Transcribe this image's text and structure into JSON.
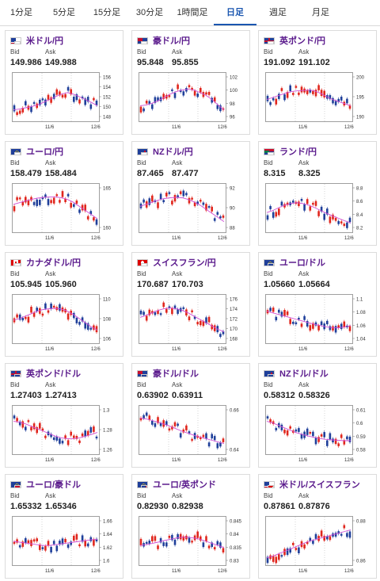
{
  "tabs": [
    {
      "label": "1分足",
      "active": false
    },
    {
      "label": "5分足",
      "active": false
    },
    {
      "label": "15分足",
      "active": false
    },
    {
      "label": "30分足",
      "active": false
    },
    {
      "label": "1時間足",
      "active": false
    },
    {
      "label": "日足",
      "active": true
    },
    {
      "label": "週足",
      "active": false
    },
    {
      "label": "月足",
      "active": false
    }
  ],
  "labels": {
    "bid": "Bid",
    "ask": "Ask"
  },
  "colors": {
    "up": "#e0261d",
    "down": "#1f3f9a",
    "ma": "#d14fd6",
    "pairText": "#5a1a8c",
    "activeTab": "#1a56b0"
  },
  "pairs": [
    {
      "name": "米ドル/円",
      "bid": "149.986",
      "ask": "149.988",
      "flags": [
        "us",
        "jp"
      ],
      "ticks": [
        "156",
        "154",
        "152",
        "150",
        "148"
      ],
      "x_labels": [
        "11/6",
        "12/6"
      ],
      "ma": [
        0.2,
        0.22,
        0.25,
        0.28,
        0.32,
        0.38,
        0.45,
        0.52,
        0.58,
        0.62,
        0.58,
        0.52,
        0.45,
        0.38,
        0.3
      ]
    },
    {
      "name": "豪ドル/円",
      "bid": "95.848",
      "ask": "95.855",
      "flags": [
        "au",
        "jp"
      ],
      "ticks": [
        "102",
        "100",
        "98",
        "96"
      ],
      "x_labels": [
        "11/6",
        "12/6"
      ],
      "ma": [
        0.3,
        0.32,
        0.36,
        0.42,
        0.5,
        0.58,
        0.64,
        0.68,
        0.7,
        0.68,
        0.62,
        0.55,
        0.45,
        0.32,
        0.2
      ]
    },
    {
      "name": "英ポンド/円",
      "bid": "191.092",
      "ask": "191.102",
      "flags": [
        "gb",
        "jp"
      ],
      "ticks": [
        "200",
        "195",
        "190"
      ],
      "x_labels": [
        "11/6",
        "12/6"
      ],
      "ma": [
        0.45,
        0.5,
        0.55,
        0.6,
        0.64,
        0.66,
        0.67,
        0.68,
        0.66,
        0.6,
        0.52,
        0.45,
        0.4,
        0.35,
        0.3
      ]
    },
    {
      "name": "ユーロ/円",
      "bid": "158.479",
      "ask": "158.484",
      "flags": [
        "eu",
        "jp"
      ],
      "ticks": [
        "165",
        "160"
      ],
      "x_labels": [
        "11/6",
        "12/6"
      ],
      "ma": [
        0.6,
        0.64,
        0.68,
        0.72,
        0.75,
        0.77,
        0.78,
        0.78,
        0.76,
        0.72,
        0.65,
        0.55,
        0.45,
        0.35,
        0.25
      ]
    },
    {
      "name": "NZドル/円",
      "bid": "87.465",
      "ask": "87.477",
      "flags": [
        "nz",
        "jp"
      ],
      "ticks": [
        "92",
        "90",
        "88"
      ],
      "x_labels": [
        "11/6",
        "12/6"
      ],
      "ma": [
        0.55,
        0.6,
        0.65,
        0.7,
        0.74,
        0.76,
        0.77,
        0.76,
        0.72,
        0.66,
        0.58,
        0.48,
        0.38,
        0.28,
        0.18
      ]
    },
    {
      "name": "ランド/円",
      "bid": "8.315",
      "ask": "8.325",
      "flags": [
        "za",
        "jp"
      ],
      "ticks": [
        "8.8",
        "8.6",
        "8.4",
        "8.2"
      ],
      "x_labels": [
        "11/6",
        "12/6"
      ],
      "ma": [
        0.4,
        0.45,
        0.52,
        0.58,
        0.62,
        0.64,
        0.62,
        0.58,
        0.52,
        0.45,
        0.38,
        0.32,
        0.26,
        0.2,
        0.15
      ]
    },
    {
      "name": "カナダドル/円",
      "bid": "105.945",
      "ask": "105.960",
      "flags": [
        "ca",
        "jp"
      ],
      "ticks": [
        "110",
        "108",
        "106"
      ],
      "x_labels": [
        "11/6",
        "12/6"
      ],
      "ma": [
        0.48,
        0.52,
        0.58,
        0.64,
        0.7,
        0.74,
        0.76,
        0.77,
        0.75,
        0.7,
        0.62,
        0.52,
        0.42,
        0.32,
        0.24
      ]
    },
    {
      "name": "スイスフラン/円",
      "bid": "170.687",
      "ask": "170.703",
      "flags": [
        "ch",
        "jp"
      ],
      "ticks": [
        "176",
        "174",
        "172",
        "170",
        "168"
      ],
      "x_labels": [
        "11/6",
        "12/6"
      ],
      "ma": [
        0.55,
        0.6,
        0.66,
        0.72,
        0.76,
        0.78,
        0.76,
        0.72,
        0.66,
        0.58,
        0.5,
        0.42,
        0.34,
        0.26,
        0.2
      ]
    },
    {
      "name": "ユーロ/ドル",
      "bid": "1.05660",
      "ask": "1.05664",
      "flags": [
        "eu",
        "us"
      ],
      "ticks": [
        "1.1",
        "1.08",
        "1.06",
        "1.04"
      ],
      "x_labels": [
        "11/6",
        "12/6"
      ],
      "ma": [
        0.7,
        0.66,
        0.62,
        0.58,
        0.54,
        0.5,
        0.46,
        0.42,
        0.38,
        0.35,
        0.32,
        0.3,
        0.3,
        0.32,
        0.35
      ]
    },
    {
      "name": "英ポンド/ドル",
      "bid": "1.27403",
      "ask": "1.27413",
      "flags": [
        "gb",
        "us"
      ],
      "ticks": [
        "1.3",
        "1.28",
        "1.26"
      ],
      "x_labels": [
        "11/6",
        "12/6"
      ],
      "ma": [
        0.72,
        0.7,
        0.66,
        0.6,
        0.54,
        0.48,
        0.42,
        0.36,
        0.32,
        0.3,
        0.3,
        0.32,
        0.36,
        0.4,
        0.45
      ]
    },
    {
      "name": "豪ドル/ドル",
      "bid": "0.63902",
      "ask": "0.63911",
      "flags": [
        "au",
        "us"
      ],
      "ticks": [
        "0.66",
        "0.64"
      ],
      "x_labels": [
        "11/6",
        "12/6"
      ],
      "ma": [
        0.8,
        0.78,
        0.74,
        0.7,
        0.65,
        0.6,
        0.54,
        0.48,
        0.43,
        0.38,
        0.34,
        0.3,
        0.26,
        0.22,
        0.18
      ]
    },
    {
      "name": "NZドル/ドル",
      "bid": "0.58312",
      "ask": "0.58326",
      "flags": [
        "nz",
        "us"
      ],
      "ticks": [
        "0.61",
        "0.6",
        "0.59",
        "0.58"
      ],
      "x_labels": [
        "11/6",
        "12/6"
      ],
      "ma": [
        0.72,
        0.68,
        0.62,
        0.56,
        0.5,
        0.44,
        0.4,
        0.36,
        0.33,
        0.3,
        0.28,
        0.27,
        0.26,
        0.25,
        0.25
      ]
    },
    {
      "name": "ユーロ/豪ドル",
      "bid": "1.65332",
      "ask": "1.65346",
      "flags": [
        "eu",
        "au"
      ],
      "ticks": [
        "1.66",
        "1.64",
        "1.62",
        "1.6"
      ],
      "x_labels": [
        "11/6",
        "12/6"
      ],
      "ma": [
        0.5,
        0.48,
        0.46,
        0.44,
        0.42,
        0.4,
        0.4,
        0.42,
        0.44,
        0.46,
        0.48,
        0.5,
        0.52,
        0.54,
        0.55
      ]
    },
    {
      "name": "ユーロ/英ポンド",
      "bid": "0.82930",
      "ask": "0.82938",
      "flags": [
        "eu",
        "gb"
      ],
      "ticks": [
        "0.845",
        "0.84",
        "0.835",
        "0.83"
      ],
      "x_labels": [
        "11/6",
        "12/6"
      ],
      "ma": [
        0.4,
        0.42,
        0.45,
        0.48,
        0.52,
        0.55,
        0.58,
        0.6,
        0.6,
        0.58,
        0.55,
        0.5,
        0.45,
        0.4,
        0.35
      ]
    },
    {
      "name": "米ドル/スイスフラン",
      "bid": "0.87861",
      "ask": "0.87876",
      "flags": [
        "us",
        "ch"
      ],
      "ticks": [
        "0.88",
        "0.86"
      ],
      "x_labels": [
        "11/6",
        "12/6"
      ],
      "ma": [
        0.1,
        0.14,
        0.2,
        0.26,
        0.32,
        0.38,
        0.44,
        0.5,
        0.54,
        0.58,
        0.62,
        0.66,
        0.7,
        0.74,
        0.78
      ]
    }
  ]
}
